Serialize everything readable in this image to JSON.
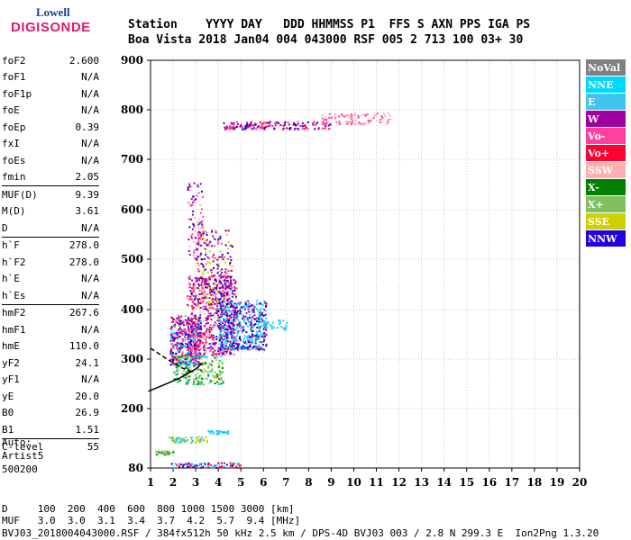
{
  "logo": {
    "top": "Lowell",
    "main": "DIGISONDE"
  },
  "header": {
    "line1": "Station    YYYY DAY   DDD HHMMSS P1  FFS S AXN PPS IGA PS",
    "line2": "Boa Vista 2018 Jan04 004 043000 RSF 005 2 713 100 03+ 30"
  },
  "params": [
    [
      {
        "k": "foF2",
        "v": "2.600"
      },
      {
        "k": "foF1",
        "v": "N/A"
      },
      {
        "k": "foF1p",
        "v": "N/A"
      },
      {
        "k": "foE",
        "v": "N/A"
      },
      {
        "k": "foEp",
        "v": "0.39"
      },
      {
        "k": "fxI",
        "v": "N/A"
      },
      {
        "k": "foEs",
        "v": "N/A"
      },
      {
        "k": "fmin",
        "v": "2.05"
      }
    ],
    [
      {
        "k": "MUF(D)",
        "v": "9.39"
      },
      {
        "k": "M(D)",
        "v": "3.61"
      },
      {
        "k": "D",
        "v": "N/A"
      }
    ],
    [
      {
        "k": "h`F",
        "v": "278.0"
      },
      {
        "k": "h`F2",
        "v": "278.0"
      },
      {
        "k": "h`E",
        "v": "N/A"
      },
      {
        "k": "h`Es",
        "v": "N/A"
      }
    ],
    [
      {
        "k": "hmF2",
        "v": "267.6"
      },
      {
        "k": "hmF1",
        "v": "N/A"
      },
      {
        "k": "hmE",
        "v": "110.0"
      },
      {
        "k": "yF2",
        "v": "24.1"
      },
      {
        "k": "yF1",
        "v": "N/A"
      },
      {
        "k": "yE",
        "v": "20.0"
      },
      {
        "k": "B0",
        "v": "26.9"
      },
      {
        "k": "B1",
        "v": "1.51"
      }
    ],
    [
      {
        "k": "C-level",
        "v": "55"
      }
    ]
  ],
  "auto": {
    "l1": "Auto:",
    "l2": "Artist5",
    "l3": "500200"
  },
  "footer": {
    "l1": "D     100  200  400  600  800 1000 1500 3000 [km]",
    "l2": "MUF   3.0  3.0  3.1  3.4  3.7  4.2  5.7  9.4 [MHz]",
    "l3": "BVJ03_2018004043000.RSF / 384fx512h 50 kHz 2.5 km / DPS-4D BVJ03 003 / 2.8 N 299.3 E  Ion2Png 1.3.20"
  },
  "chart_data": {
    "type": "scatter",
    "xlim": [
      0.9,
      20
    ],
    "ylim": [
      80,
      900
    ],
    "x_ticks": [
      1,
      2,
      3,
      4,
      5,
      6,
      7,
      8,
      9,
      10,
      11,
      12,
      13,
      14,
      15,
      16,
      17,
      18,
      19,
      20
    ],
    "y_ticks": [
      80,
      200,
      300,
      400,
      500,
      600,
      700,
      800,
      900
    ],
    "grid": true,
    "legend_position": "right",
    "legend": [
      {
        "name": "NoVal",
        "color": "#808080"
      },
      {
        "name": "NNE",
        "color": "#00d8ff"
      },
      {
        "name": "E",
        "color": "#40c4f0"
      },
      {
        "name": "W",
        "color": "#a000a0"
      },
      {
        "name": "Vo-",
        "color": "#ff40a0"
      },
      {
        "name": "Vo+",
        "color": "#ff0030"
      },
      {
        "name": "SSW",
        "color": "#ffb0b0"
      },
      {
        "name": "X-",
        "color": "#008000"
      },
      {
        "name": "X+",
        "color": "#80c060"
      },
      {
        "name": "SSE",
        "color": "#d0d000"
      },
      {
        "name": "NNW",
        "color": "#2000e0"
      }
    ],
    "traces": [
      {
        "name": "O-trace",
        "color": "#000000",
        "points": [
          [
            1.0,
            322
          ],
          [
            1.8,
            298
          ],
          [
            2.4,
            282
          ],
          [
            2.8,
            275
          ]
        ]
      },
      {
        "name": "X-trace",
        "color": "#000000",
        "points": [
          [
            0.9,
            235
          ],
          [
            1.6,
            248
          ],
          [
            2.3,
            262
          ],
          [
            3.0,
            280
          ],
          [
            3.3,
            292
          ]
        ]
      }
    ],
    "clusters": [
      {
        "x": [
          1.85,
          3.2
        ],
        "y": [
          290,
          390
        ],
        "n": 420,
        "colors": [
          "#a000a0",
          "#ff0030",
          "#2000e0",
          "#ff40a0",
          "#00d8ff"
        ]
      },
      {
        "x": [
          2.6,
          4.8
        ],
        "y": [
          310,
          470
        ],
        "n": 600,
        "colors": [
          "#a000a0",
          "#ff0030",
          "#2000e0",
          "#ff40a0",
          "#ffb0b0"
        ]
      },
      {
        "x": [
          3.0,
          4.6
        ],
        "y": [
          400,
          560
        ],
        "n": 260,
        "colors": [
          "#a000a0",
          "#ff40a0",
          "#2000e0",
          "#d0d000"
        ]
      },
      {
        "x": [
          4.0,
          6.1
        ],
        "y": [
          320,
          420
        ],
        "n": 500,
        "colors": [
          "#00d8ff",
          "#40c4f0",
          "#2000e0",
          "#a000a0"
        ]
      },
      {
        "x": [
          6.0,
          7.0
        ],
        "y": [
          360,
          380
        ],
        "n": 30,
        "colors": [
          "#00d8ff",
          "#40c4f0"
        ]
      },
      {
        "x": [
          2.0,
          4.2
        ],
        "y": [
          250,
          310
        ],
        "n": 220,
        "colors": [
          "#008000",
          "#80c060",
          "#d0d000",
          "#00d8ff"
        ]
      },
      {
        "x": [
          2.6,
          3.3
        ],
        "y": [
          500,
          660
        ],
        "n": 90,
        "colors": [
          "#a000a0",
          "#ffb0b0",
          "#2000e0",
          "#ff40a0"
        ]
      },
      {
        "x": [
          4.2,
          9.0
        ],
        "y": [
          762,
          778
        ],
        "n": 160,
        "colors": [
          "#a000a0",
          "#2000e0",
          "#ff40a0",
          "#ff0030"
        ]
      },
      {
        "x": [
          8.5,
          11.6
        ],
        "y": [
          772,
          795
        ],
        "n": 90,
        "colors": [
          "#ffb0b0",
          "#ff40a0"
        ]
      },
      {
        "x": [
          1.8,
          3.5
        ],
        "y": [
          132,
          145
        ],
        "n": 60,
        "colors": [
          "#d0d000",
          "#80c060",
          "#00d8ff"
        ]
      },
      {
        "x": [
          3.5,
          4.6
        ],
        "y": [
          150,
          157
        ],
        "n": 30,
        "colors": [
          "#40c4f0",
          "#00d8ff"
        ]
      },
      {
        "x": [
          1.1,
          2.0
        ],
        "y": [
          108,
          116
        ],
        "n": 30,
        "colors": [
          "#008000",
          "#80c060"
        ]
      },
      {
        "x": [
          1.9,
          5.0
        ],
        "y": [
          82,
          92
        ],
        "n": 70,
        "colors": [
          "#a000a0",
          "#ff0030",
          "#2000e0",
          "#00d8ff"
        ]
      }
    ]
  }
}
